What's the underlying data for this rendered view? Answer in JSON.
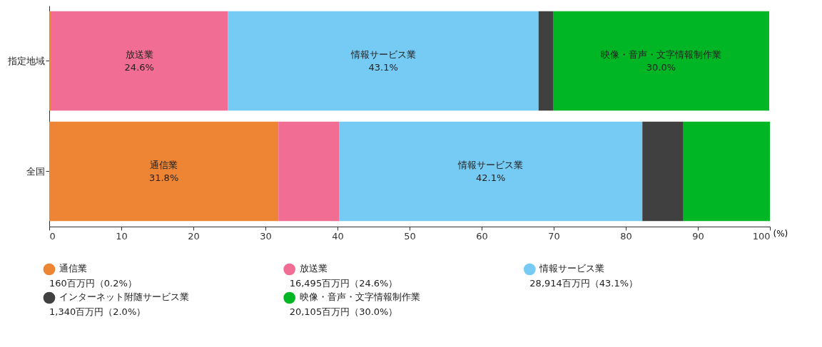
{
  "chart_data": {
    "type": "bar",
    "orientation": "horizontal",
    "stacked": true,
    "xlabel": "(%)",
    "categories": [
      "指定地域",
      "全国"
    ],
    "series": [
      {
        "name": "通信業",
        "color": "#ed8534",
        "values": [
          0.2,
          31.8
        ],
        "value_labels": [
          null,
          "31.8%"
        ]
      },
      {
        "name": "放送業",
        "color": "#f26d93",
        "values": [
          24.6,
          8.4
        ],
        "value_labels": [
          "24.6%",
          null
        ]
      },
      {
        "name": "情報サービス業",
        "color": "#76cbf4",
        "values": [
          43.1,
          42.1
        ],
        "value_labels": [
          "43.1%",
          "42.1%"
        ]
      },
      {
        "name": "インターネット附随サービス業",
        "color": "#404040",
        "values": [
          2.0,
          5.7
        ],
        "value_labels": [
          null,
          null
        ]
      },
      {
        "name": "映像・音声・文字情報制作業",
        "color": "#00b624",
        "values": [
          30.0,
          12.0
        ],
        "value_labels": [
          "30.0%",
          null
        ]
      }
    ],
    "xlim": [
      0,
      100
    ],
    "xticks": [
      0,
      10,
      20,
      30,
      40,
      50,
      60,
      70,
      80,
      90,
      100
    ],
    "grid": false,
    "legend": "bottom",
    "annotations": [
      "160百万円（0.2%）",
      "16,495百万円（24.6%）",
      "28,914百万円（43.1%）",
      "1,340百万円（2.0%）",
      "20,105百万円（30.0%）"
    ]
  }
}
